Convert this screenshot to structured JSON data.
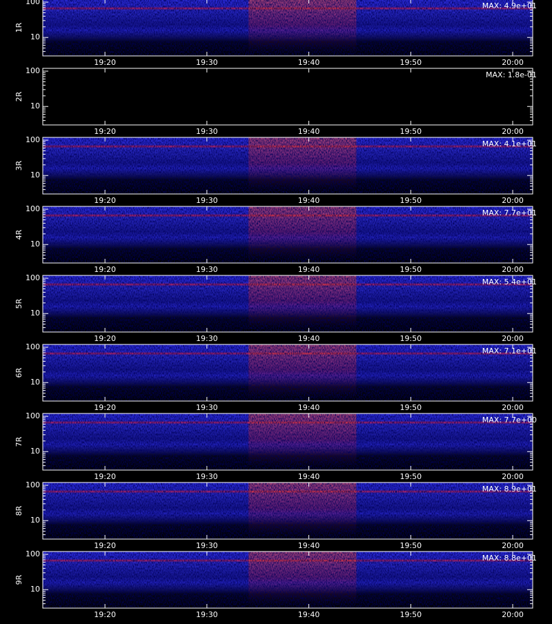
{
  "chart_data": [
    {
      "type": "spectrogram",
      "ylabel": "1R",
      "annotation": "MAX: 4.9e+01",
      "log_y": true,
      "ylim": [
        3,
        120
      ],
      "yticks": [
        10,
        100
      ],
      "yminor_ticks": [
        4,
        5,
        6,
        7,
        8,
        9,
        20,
        30,
        40,
        50,
        60,
        70,
        80,
        90
      ],
      "xlim": [
        1153.9,
        1201.96
      ],
      "xticks": [
        {
          "value": 1160,
          "label": "19:20"
        },
        {
          "value": 1170,
          "label": "19:30"
        },
        {
          "value": 1180,
          "label": "19:40"
        },
        {
          "value": 1190,
          "label": "19:50"
        },
        {
          "value": 1200,
          "label": "20:00"
        }
      ]
    },
    {
      "type": "spectrogram",
      "ylabel": "2R",
      "annotation": "MAX: 1.8e-01",
      "log_y": true,
      "ylim": [
        3,
        120
      ],
      "yticks": [
        10,
        100
      ],
      "yminor_ticks": [
        4,
        5,
        6,
        7,
        8,
        9,
        20,
        30,
        40,
        50,
        60,
        70,
        80,
        90
      ],
      "xlim": [
        1153.9,
        1201.96
      ],
      "xticks": [
        {
          "value": 1160,
          "label": "19:20"
        },
        {
          "value": 1170,
          "label": "19:30"
        },
        {
          "value": 1180,
          "label": "19:40"
        },
        {
          "value": 1190,
          "label": "19:50"
        },
        {
          "value": 1200,
          "label": "20:00"
        }
      ]
    },
    {
      "type": "spectrogram",
      "ylabel": "3R",
      "annotation": "MAX: 4.1e+01",
      "log_y": true,
      "ylim": [
        3,
        120
      ],
      "yticks": [
        10,
        100
      ],
      "yminor_ticks": [
        4,
        5,
        6,
        7,
        8,
        9,
        20,
        30,
        40,
        50,
        60,
        70,
        80,
        90
      ],
      "xlim": [
        1153.9,
        1201.96
      ],
      "xticks": [
        {
          "value": 1160,
          "label": "19:20"
        },
        {
          "value": 1170,
          "label": "19:30"
        },
        {
          "value": 1180,
          "label": "19:40"
        },
        {
          "value": 1190,
          "label": "19:50"
        },
        {
          "value": 1200,
          "label": "20:00"
        }
      ]
    },
    {
      "type": "spectrogram",
      "ylabel": "4R",
      "annotation": "MAX: 7.7e+01",
      "log_y": true,
      "ylim": [
        3,
        120
      ],
      "yticks": [
        10,
        100
      ],
      "yminor_ticks": [
        4,
        5,
        6,
        7,
        8,
        9,
        20,
        30,
        40,
        50,
        60,
        70,
        80,
        90
      ],
      "xlim": [
        1153.9,
        1201.96
      ],
      "xticks": [
        {
          "value": 1160,
          "label": "19:20"
        },
        {
          "value": 1170,
          "label": "19:30"
        },
        {
          "value": 1180,
          "label": "19:40"
        },
        {
          "value": 1190,
          "label": "19:50"
        },
        {
          "value": 1200,
          "label": "20:00"
        }
      ]
    },
    {
      "type": "spectrogram",
      "ylabel": "5R",
      "annotation": "MAX: 5.4e+01",
      "log_y": true,
      "ylim": [
        3,
        120
      ],
      "yticks": [
        10,
        100
      ],
      "yminor_ticks": [
        4,
        5,
        6,
        7,
        8,
        9,
        20,
        30,
        40,
        50,
        60,
        70,
        80,
        90
      ],
      "xlim": [
        1153.9,
        1201.96
      ],
      "xticks": [
        {
          "value": 1160,
          "label": "19:20"
        },
        {
          "value": 1170,
          "label": "19:30"
        },
        {
          "value": 1180,
          "label": "19:40"
        },
        {
          "value": 1190,
          "label": "19:50"
        },
        {
          "value": 1200,
          "label": "20:00"
        }
      ]
    },
    {
      "type": "spectrogram",
      "ylabel": "6R",
      "annotation": "MAX: 7.1e+01",
      "log_y": true,
      "ylim": [
        3,
        120
      ],
      "yticks": [
        10,
        100
      ],
      "yminor_ticks": [
        4,
        5,
        6,
        7,
        8,
        9,
        20,
        30,
        40,
        50,
        60,
        70,
        80,
        90
      ],
      "xlim": [
        1153.9,
        1201.96
      ],
      "xticks": [
        {
          "value": 1160,
          "label": "19:20"
        },
        {
          "value": 1170,
          "label": "19:30"
        },
        {
          "value": 1180,
          "label": "19:40"
        },
        {
          "value": 1190,
          "label": "19:50"
        },
        {
          "value": 1200,
          "label": "20:00"
        }
      ]
    },
    {
      "type": "spectrogram",
      "ylabel": "7R",
      "annotation": "MAX: 7.7e+00",
      "log_y": true,
      "ylim": [
        3,
        120
      ],
      "yticks": [
        10,
        100
      ],
      "yminor_ticks": [
        4,
        5,
        6,
        7,
        8,
        9,
        20,
        30,
        40,
        50,
        60,
        70,
        80,
        90
      ],
      "xlim": [
        1153.9,
        1201.96
      ],
      "xticks": [
        {
          "value": 1160,
          "label": "19:20"
        },
        {
          "value": 1170,
          "label": "19:30"
        },
        {
          "value": 1180,
          "label": "19:40"
        },
        {
          "value": 1190,
          "label": "19:50"
        },
        {
          "value": 1200,
          "label": "20:00"
        }
      ]
    },
    {
      "type": "spectrogram",
      "ylabel": "8R",
      "annotation": "MAX: 8.9e+01",
      "log_y": true,
      "ylim": [
        3,
        120
      ],
      "yticks": [
        10,
        100
      ],
      "yminor_ticks": [
        4,
        5,
        6,
        7,
        8,
        9,
        20,
        30,
        40,
        50,
        60,
        70,
        80,
        90
      ],
      "xlim": [
        1153.9,
        1201.96
      ],
      "xticks": [
        {
          "value": 1160,
          "label": "19:20"
        },
        {
          "value": 1170,
          "label": "19:30"
        },
        {
          "value": 1180,
          "label": "19:40"
        },
        {
          "value": 1190,
          "label": "19:50"
        },
        {
          "value": 1200,
          "label": "20:00"
        }
      ]
    },
    {
      "type": "spectrogram",
      "ylabel": "9R",
      "annotation": "MAX: 8.8e+01",
      "log_y": true,
      "ylim": [
        3,
        120
      ],
      "yticks": [
        10,
        100
      ],
      "yminor_ticks": [
        4,
        5,
        6,
        7,
        8,
        9,
        20,
        30,
        40,
        50,
        60,
        70,
        80,
        90
      ],
      "xlim": [
        1153.9,
        1201.96
      ],
      "xticks": [
        {
          "value": 1160,
          "label": "19:20"
        },
        {
          "value": 1170,
          "label": "19:30"
        },
        {
          "value": 1180,
          "label": "19:40"
        },
        {
          "value": 1190,
          "label": "19:50"
        },
        {
          "value": 1200,
          "label": "20:00"
        }
      ]
    }
  ]
}
